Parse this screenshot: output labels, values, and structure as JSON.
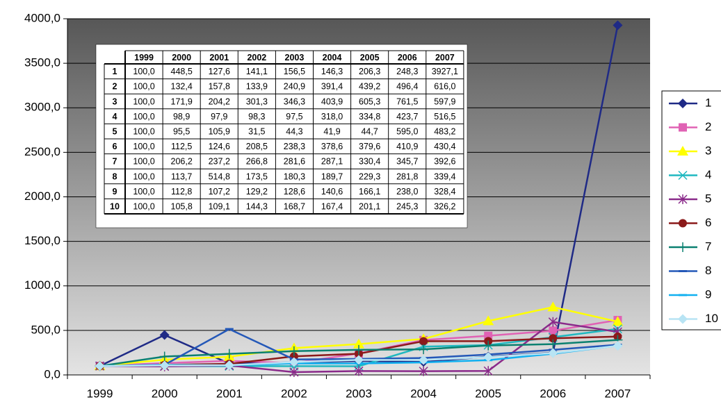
{
  "chart_data": {
    "type": "line",
    "categories": [
      "1999",
      "2000",
      "2001",
      "2002",
      "2003",
      "2004",
      "2005",
      "2006",
      "2007"
    ],
    "ylim": [
      0,
      4000
    ],
    "yticks": [
      {
        "value": 0,
        "label": "0,0"
      },
      {
        "value": 500,
        "label": "500,0"
      },
      {
        "value": 1000,
        "label": "1000,0"
      },
      {
        "value": 1500,
        "label": "1500,0"
      },
      {
        "value": 2000,
        "label": "2000,0"
      },
      {
        "value": 2500,
        "label": "2500,0"
      },
      {
        "value": 3000,
        "label": "3000,0"
      },
      {
        "value": 3500,
        "label": "3500,0"
      },
      {
        "value": 4000,
        "label": "4000,0"
      }
    ],
    "grid": true,
    "legend": "right",
    "series": [
      {
        "name": "1",
        "color": "#1f2a86",
        "marker": "diamond",
        "values": [
          100,
          448.5,
          127.6,
          141.1,
          156.5,
          146.3,
          206.3,
          248.3,
          3927.1
        ],
        "value_labels": [
          "100,0",
          "448,5",
          "127,6",
          "141,1",
          "156,5",
          "146,3",
          "206,3",
          "248,3",
          "3927,1"
        ]
      },
      {
        "name": "2",
        "color": "#e062b4",
        "marker": "square",
        "values": [
          100,
          132.4,
          157.8,
          133.9,
          240.9,
          391.4,
          439.2,
          496.4,
          616.0
        ],
        "value_labels": [
          "100,0",
          "132,4",
          "157,8",
          "133,9",
          "240,9",
          "391,4",
          "439,2",
          "496,4",
          "616,0"
        ]
      },
      {
        "name": "3",
        "color": "#ffff00",
        "marker": "triangle",
        "values": [
          100,
          171.9,
          204.2,
          301.3,
          346.3,
          403.9,
          605.3,
          761.5,
          597.9
        ],
        "value_labels": [
          "100,0",
          "171,9",
          "204,2",
          "301,3",
          "346,3",
          "403,9",
          "605,3",
          "761,5",
          "597,9"
        ]
      },
      {
        "name": "4",
        "color": "#1fb8c0",
        "marker": "x",
        "values": [
          100,
          98.9,
          97.9,
          98.3,
          97.5,
          318.0,
          334.8,
          423.7,
          516.5
        ],
        "value_labels": [
          "100,0",
          "98,9",
          "97,9",
          "98,3",
          "97,5",
          "318,0",
          "334,8",
          "423,7",
          "516,5"
        ]
      },
      {
        "name": "5",
        "color": "#8a2a8a",
        "marker": "star",
        "values": [
          100,
          95.5,
          105.9,
          31.5,
          44.3,
          41.9,
          44.7,
          595.0,
          483.2
        ],
        "value_labels": [
          "100,0",
          "95,5",
          "105,9",
          "31,5",
          "44,3",
          "41,9",
          "44,7",
          "595,0",
          "483,2"
        ]
      },
      {
        "name": "6",
        "color": "#8b1a1a",
        "marker": "circle",
        "values": [
          100,
          112.5,
          124.6,
          208.5,
          238.3,
          378.6,
          379.6,
          410.9,
          430.4
        ],
        "value_labels": [
          "100,0",
          "112,5",
          "124,6",
          "208,5",
          "238,3",
          "378,6",
          "379,6",
          "410,9",
          "430,4"
        ]
      },
      {
        "name": "7",
        "color": "#0a8070",
        "marker": "plus",
        "values": [
          100,
          206.2,
          237.2,
          266.8,
          281.6,
          287.1,
          330.4,
          345.7,
          392.6
        ],
        "value_labels": [
          "100,0",
          "206,2",
          "237,2",
          "266,8",
          "281,6",
          "287,1",
          "330,4",
          "345,7",
          "392,6"
        ]
      },
      {
        "name": "8",
        "color": "#2458b8",
        "marker": "dash",
        "values": [
          100,
          113.7,
          514.8,
          173.5,
          180.3,
          189.7,
          229.3,
          281.8,
          339.4
        ],
        "value_labels": [
          "100,0",
          "113,7",
          "514,8",
          "173,5",
          "180,3",
          "189,7",
          "229,3",
          "281,8",
          "339,4"
        ]
      },
      {
        "name": "9",
        "color": "#10b0f0",
        "marker": "dash",
        "values": [
          100,
          112.8,
          107.2,
          129.2,
          128.6,
          140.6,
          166.1,
          238.0,
          328.4
        ],
        "value_labels": [
          "100,0",
          "112,8",
          "107,2",
          "129,2",
          "128,6",
          "140,6",
          "166,1",
          "238,0",
          "328,4"
        ]
      },
      {
        "name": "10",
        "color": "#b8e4f4",
        "marker": "diamond",
        "values": [
          100,
          105.8,
          109.1,
          144.3,
          168.7,
          167.4,
          201.1,
          245.3,
          326.2
        ],
        "value_labels": [
          "100,0",
          "105,8",
          "109,1",
          "144,3",
          "168,7",
          "167,4",
          "201,1",
          "245,3",
          "326,2"
        ]
      }
    ]
  }
}
